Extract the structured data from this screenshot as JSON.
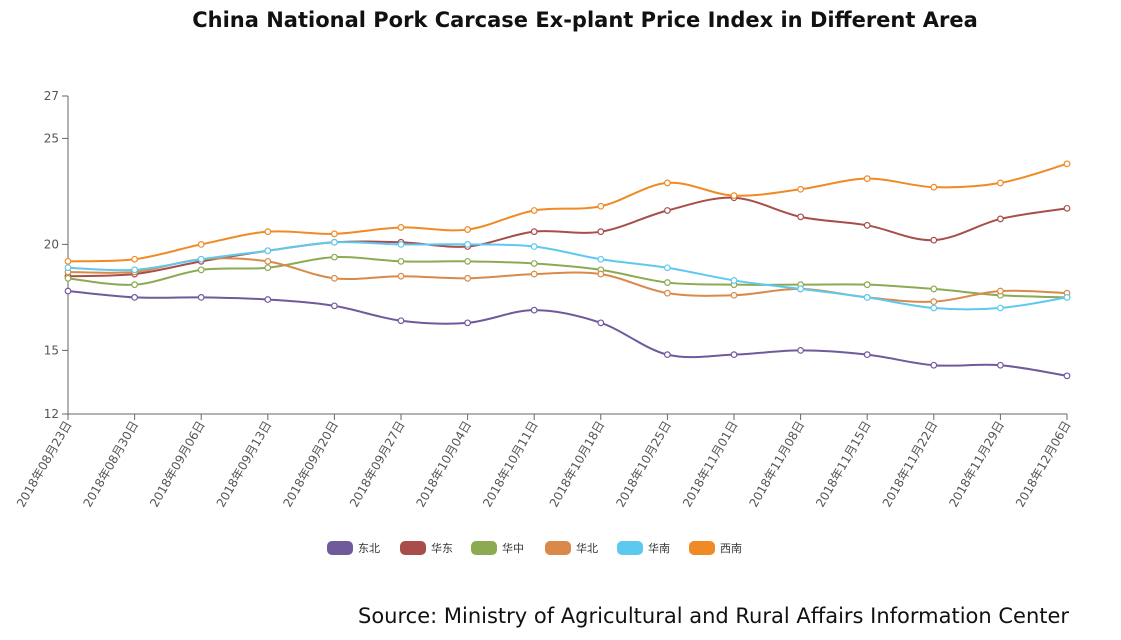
{
  "chart_data": {
    "type": "line",
    "title": "China National Pork Carcase Ex-plant Price Index in Different Area",
    "source": "Source: Ministry of Agricultural and Rural Affairs Information Center",
    "x": [
      "2018年08月23日",
      "2018年08月30日",
      "2018年09月06日",
      "2018年09月13日",
      "2018年09月20日",
      "2018年09月27日",
      "2018年10月04日",
      "2018年10月11日",
      "2018年10月18日",
      "2018年10月25日",
      "2018年11月01日",
      "2018年11月08日",
      "2018年11月15日",
      "2018年11月22日",
      "2018年11月29日",
      "2018年12月06日"
    ],
    "ylim": [
      12,
      27
    ],
    "yticks": [
      12,
      15,
      20,
      25,
      27
    ],
    "legend_position": "bottom",
    "series": [
      {
        "name": "东北",
        "color": "#6f5a9c",
        "values": [
          17.8,
          17.5,
          17.5,
          17.4,
          17.1,
          16.4,
          16.3,
          16.9,
          16.3,
          14.8,
          14.8,
          15.0,
          14.8,
          14.3,
          14.3,
          13.8
        ]
      },
      {
        "name": "华东",
        "color": "#a84e4a",
        "values": [
          18.5,
          18.6,
          19.2,
          19.7,
          20.1,
          20.1,
          19.9,
          20.6,
          20.6,
          21.6,
          22.2,
          21.3,
          20.9,
          20.2,
          21.2,
          21.7
        ]
      },
      {
        "name": "华中",
        "color": "#8caa52",
        "values": [
          18.4,
          18.1,
          18.8,
          18.9,
          19.4,
          19.2,
          19.2,
          19.1,
          18.8,
          18.2,
          18.1,
          18.1,
          18.1,
          17.9,
          17.6,
          17.5
        ]
      },
      {
        "name": "华北",
        "color": "#d98a4a",
        "values": [
          18.7,
          18.7,
          19.3,
          19.2,
          18.4,
          18.5,
          18.4,
          18.6,
          18.6,
          17.7,
          17.6,
          17.9,
          17.5,
          17.3,
          17.8,
          17.7
        ]
      },
      {
        "name": "华南",
        "color": "#5ec9ef",
        "values": [
          18.9,
          18.8,
          19.3,
          19.7,
          20.1,
          20.0,
          20.0,
          19.9,
          19.3,
          18.9,
          18.3,
          17.9,
          17.5,
          17.0,
          17.0,
          17.5
        ]
      },
      {
        "name": "西南",
        "color": "#f08a24",
        "values": [
          19.2,
          19.3,
          20.0,
          20.6,
          20.5,
          20.8,
          20.7,
          21.6,
          21.8,
          22.9,
          22.3,
          22.6,
          23.1,
          22.7,
          22.9,
          23.8
        ]
      }
    ]
  }
}
